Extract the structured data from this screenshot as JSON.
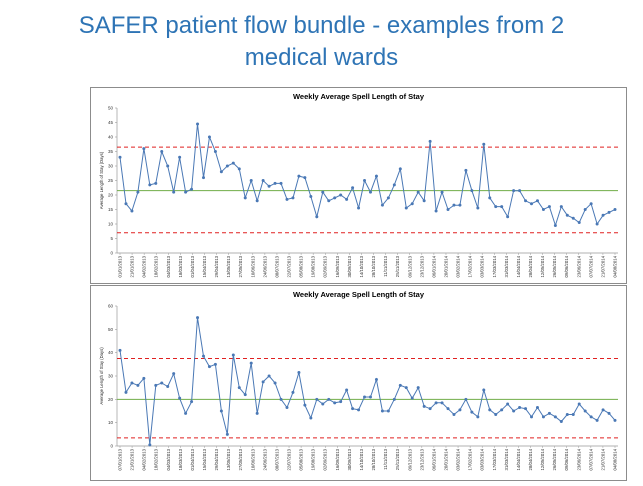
{
  "slide": {
    "title_line1": "SAFER patient flow bundle - examples from 2",
    "title_line2": "medical wards"
  },
  "chart_data": [
    {
      "type": "line",
      "title": "Weekly Average Spell Length of Stay",
      "ylabel": "Average Length of Stay (Days)",
      "xlabel": "",
      "ylim": [
        0,
        50
      ],
      "yticks": [
        0,
        5,
        10,
        15,
        20,
        25,
        30,
        35,
        40,
        45,
        50
      ],
      "grid": false,
      "colors": {
        "series": "#4a78b5",
        "ucl": "#e02020",
        "lcl": "#e02020",
        "mean": "#70ad47"
      },
      "control_limits": {
        "ucl": 36.5,
        "mean": 21.5,
        "lcl": 7.0
      },
      "x_tick_labels": [
        "01/01/2013",
        "21/01/2013",
        "04/02/2013",
        "18/02/2013",
        "04/03/2013",
        "18/03/2013",
        "01/04/2013",
        "15/04/2013",
        "29/04/2013",
        "13/05/2013",
        "27/05/2013",
        "10/06/2013",
        "24/06/2013",
        "08/07/2013",
        "22/07/2013",
        "05/08/2013",
        "19/08/2013",
        "02/09/2013",
        "16/09/2013",
        "30/09/2013",
        "14/10/2013",
        "28/10/2013",
        "11/11/2013",
        "25/11/2013",
        "09/12/2013",
        "23/12/2013",
        "06/01/2014",
        "20/01/2014",
        "03/02/2014",
        "17/02/2014",
        "03/03/2014",
        "17/03/2014",
        "31/03/2014",
        "14/04/2014",
        "28/04/2014",
        "12/05/2014",
        "26/05/2014",
        "09/06/2014",
        "23/06/2014",
        "07/07/2014",
        "21/07/2014",
        "04/08/2014"
      ],
      "values": [
        33,
        17,
        14.5,
        21,
        36,
        23.5,
        24,
        35,
        30,
        21,
        33,
        21,
        22,
        44.5,
        26,
        40,
        35,
        28,
        30,
        31,
        29,
        19,
        25,
        18,
        25,
        23,
        24,
        24,
        18.5,
        19,
        26.5,
        26,
        19.5,
        12.5,
        21,
        18,
        19,
        20,
        18.5,
        22.5,
        15.5,
        25,
        21,
        26.5,
        16.5,
        19,
        23.5,
        29,
        15.5,
        17,
        21,
        18,
        38.5,
        14.5,
        21,
        15,
        16.5,
        16.5,
        28.5,
        21.5,
        15.5,
        37.5,
        19,
        16,
        16,
        12.5,
        21.5,
        21.5,
        18,
        17,
        18,
        15,
        16,
        9.5,
        16,
        13,
        12,
        10.5,
        15,
        17,
        10,
        13,
        14,
        15
      ]
    },
    {
      "type": "line",
      "title": "Weekly Average Spell Length of Stay",
      "ylabel": "Average Length of Stay (Days)",
      "xlabel": "",
      "ylim": [
        0,
        60
      ],
      "yticks": [
        0,
        10,
        20,
        30,
        40,
        50,
        60
      ],
      "grid": false,
      "colors": {
        "series": "#4a78b5",
        "ucl": "#e02020",
        "lcl": "#e02020",
        "mean": "#70ad47"
      },
      "control_limits": {
        "ucl": 37.5,
        "mean": 20.0,
        "lcl": 3.5
      },
      "x_tick_labels": [
        "07/01/2013",
        "21/01/2013",
        "04/02/2013",
        "18/02/2013",
        "04/03/2013",
        "18/03/2013",
        "01/04/2013",
        "15/04/2013",
        "29/04/2013",
        "13/05/2013",
        "27/05/2013",
        "10/06/2013",
        "24/06/2013",
        "08/07/2013",
        "22/07/2013",
        "05/08/2013",
        "19/08/2013",
        "02/09/2013",
        "16/09/2013",
        "30/09/2013",
        "14/10/2013",
        "28/10/2013",
        "11/11/2013",
        "25/11/2013",
        "09/12/2013",
        "23/12/2013",
        "06/01/2014",
        "20/01/2014",
        "03/02/2014",
        "17/02/2014",
        "03/03/2014",
        "17/03/2014",
        "31/03/2014",
        "14/04/2014",
        "28/04/2014",
        "12/05/2014",
        "26/05/2014",
        "09/06/2014",
        "23/06/2014",
        "07/07/2014",
        "21/07/2014",
        "04/08/2014"
      ],
      "values": [
        41,
        23,
        27,
        26,
        29,
        0.5,
        26,
        27,
        25.5,
        31,
        20.5,
        14,
        19,
        55,
        38.5,
        34,
        35,
        15,
        5,
        39,
        25,
        22,
        35.5,
        14,
        27.5,
        30,
        27,
        20,
        16.5,
        23,
        31.5,
        17.5,
        12,
        20,
        18,
        20,
        18.5,
        19,
        24,
        16,
        15.5,
        21,
        21,
        28.5,
        15,
        15,
        20,
        26,
        25,
        20.5,
        25,
        17,
        16,
        18.5,
        18.5,
        16,
        13.5,
        15.5,
        20,
        14.5,
        12.5,
        24,
        15.5,
        13.5,
        15.5,
        18,
        15,
        16.5,
        16,
        12.5,
        16.5,
        12.5,
        14,
        12.5,
        10.5,
        13.5,
        13.5,
        18,
        15,
        12.5,
        11,
        15.5,
        14,
        11
      ]
    }
  ]
}
